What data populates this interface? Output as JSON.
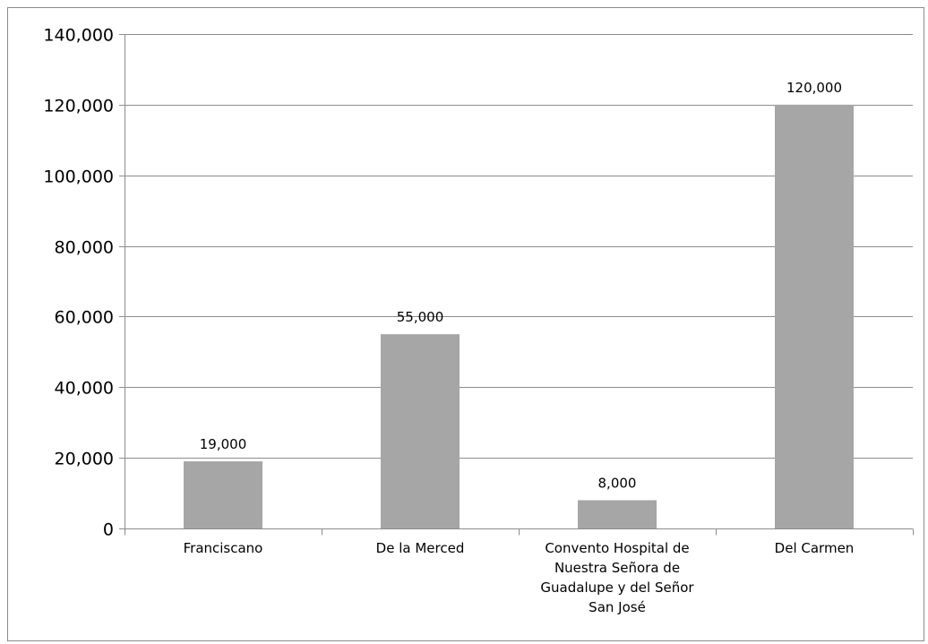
{
  "chart_data": {
    "type": "bar",
    "title": "",
    "xlabel": "",
    "ylabel": "",
    "categories": [
      "Franciscano",
      "De la Merced",
      "Convento Hospital de Nuestra Señora de Guadalupe y del Señor San José",
      "Del Carmen"
    ],
    "category_lines": [
      [
        "Franciscano"
      ],
      [
        "De la Merced"
      ],
      [
        "Convento Hospital de",
        "Nuestra Señora de",
        "Guadalupe y del Señor",
        "San José"
      ],
      [
        "Del Carmen"
      ]
    ],
    "values": [
      19000,
      55000,
      8000,
      120000
    ],
    "data_labels": [
      "19,000",
      "55,000",
      "8,000",
      "120,000"
    ],
    "ylim": [
      0,
      140000
    ],
    "yticks": [
      0,
      20000,
      40000,
      60000,
      80000,
      100000,
      120000,
      140000
    ],
    "ytick_labels": [
      "0",
      "20,000",
      "40,000",
      "60,000",
      "80,000",
      "100,000",
      "120,000",
      "140,000"
    ],
    "grid": true,
    "legend": "none",
    "colors": {
      "bar": "#a6a6a6",
      "gridline": "#8c8c8c",
      "axis": "#8c8c8c",
      "text": "#000000"
    }
  }
}
